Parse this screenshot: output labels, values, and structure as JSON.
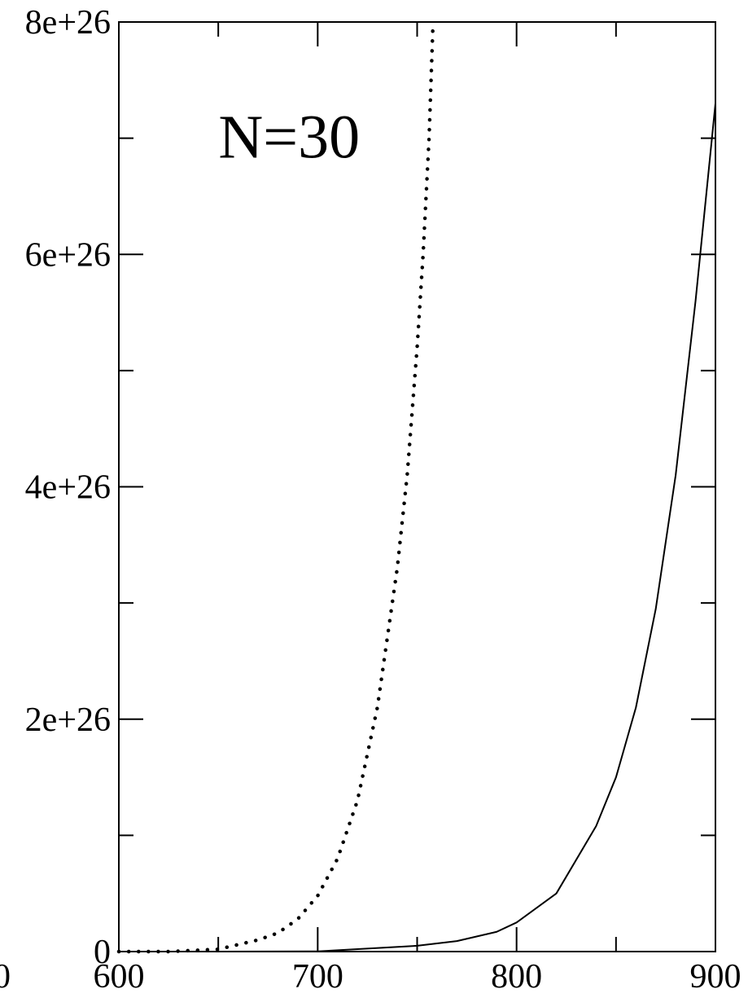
{
  "chart_data": {
    "type": "line",
    "title": "",
    "xlabel": "",
    "ylabel": "",
    "xlim": [
      600,
      900
    ],
    "ylim": [
      0,
      8e+26
    ],
    "x_ticks": [
      600,
      700,
      800,
      900
    ],
    "x_tick_labels": [
      "600",
      "700",
      "800",
      "900"
    ],
    "x_minor_ticks": [
      650,
      750,
      850
    ],
    "y_ticks": [
      0,
      2e+26,
      4e+26,
      6e+26,
      8e+26
    ],
    "y_tick_labels": [
      "0",
      "2e+26",
      "4e+26",
      "6e+26",
      "8e+26"
    ],
    "y_minor_ticks": [
      1e+26,
      3e+26,
      5e+26,
      7e+26
    ],
    "clipped_left_tick_label": "0",
    "grid": false,
    "annotations": [
      {
        "text": "N=30",
        "x": 655,
        "y": 7e+26
      }
    ],
    "series": [
      {
        "style": "dotted",
        "color": "#000000",
        "points": [
          [
            600,
            0
          ],
          [
            625,
            0
          ],
          [
            650,
            2e+24
          ],
          [
            670,
            1e+25
          ],
          [
            680,
            1.6e+25
          ],
          [
            690,
            2.8e+25
          ],
          [
            700,
            4.8e+25
          ],
          [
            710,
            8e+25
          ],
          [
            720,
            1.3e+26
          ],
          [
            730,
            2.1e+26
          ],
          [
            740,
            3.3e+26
          ],
          [
            745,
            4.1e+26
          ],
          [
            750,
            5.2e+26
          ],
          [
            753,
            6e+26
          ],
          [
            756,
            7e+26
          ],
          [
            758,
            8e+26
          ]
        ]
      },
      {
        "style": "solid",
        "color": "#000000",
        "points": [
          [
            600,
            0
          ],
          [
            650,
            0
          ],
          [
            700,
            2e+23
          ],
          [
            750,
            5e+24
          ],
          [
            770,
            9e+24
          ],
          [
            790,
            1.7e+25
          ],
          [
            800,
            2.5e+25
          ],
          [
            820,
            5e+25
          ],
          [
            840,
            1.08e+26
          ],
          [
            850,
            1.5e+26
          ],
          [
            860,
            2.1e+26
          ],
          [
            870,
            2.95e+26
          ],
          [
            880,
            4.1e+26
          ],
          [
            890,
            5.6e+26
          ],
          [
            900,
            7.3e+26
          ]
        ]
      }
    ]
  }
}
